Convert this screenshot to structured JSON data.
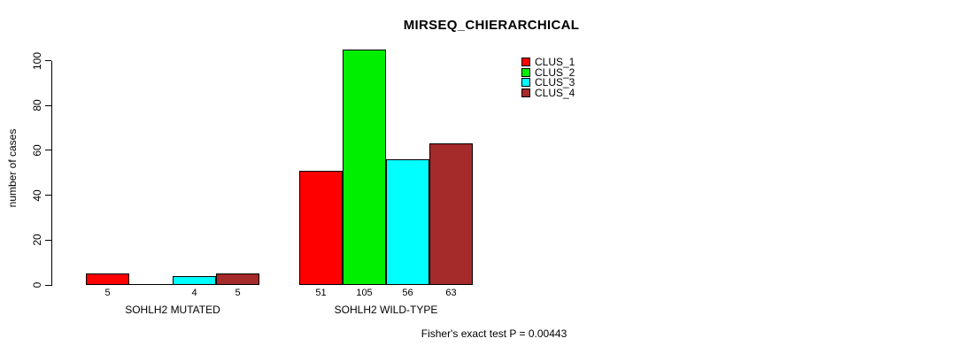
{
  "chart": {
    "title": "MIRSEQ_CHIERARCHICAL",
    "ylabel": "number of cases",
    "subtext": "Fisher's exact test P = 0.00443"
  },
  "chart_data": {
    "type": "bar",
    "title": "MIRSEQ_CHIERARCHICAL",
    "subtitle": "Fisher's exact test P = 0.00443",
    "xlabel": "",
    "ylabel": "number of cases",
    "ylim": [
      0,
      100
    ],
    "yticks": [
      0,
      20,
      40,
      60,
      80,
      100
    ],
    "grid": false,
    "bar_border_color": "#000000",
    "background_color": "#ffffff",
    "legend_position": "top-right",
    "value_labels_shown": true,
    "categories": [
      "SOHLH2 MUTATED",
      "SOHLH2 WILD-TYPE"
    ],
    "series": [
      {
        "name": "CLUS_1",
        "color": "#FF0000",
        "values": [
          5,
          51
        ]
      },
      {
        "name": "CLUS_2",
        "color": "#00EE00",
        "values": [
          0,
          105
        ]
      },
      {
        "name": "CLUS_3",
        "color": "#00FFFF",
        "values": [
          4,
          56
        ]
      },
      {
        "name": "CLUS_4",
        "color": "#A52A2A",
        "values": [
          5,
          63
        ]
      }
    ]
  }
}
